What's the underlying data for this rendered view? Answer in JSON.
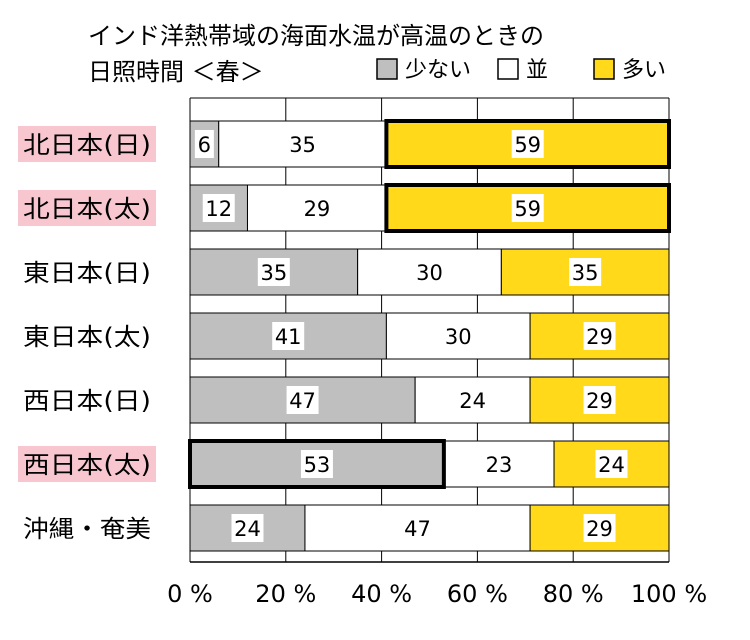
{
  "title_line1": "インド洋熱帯域の海面水温が高温のときの",
  "title_line2": "日照時間 ＜春＞",
  "colors": {
    "low": "#bfbfbf",
    "normal": "#ffffff",
    "high": "#ffd91a",
    "highlight_label_bg": "#f7c6cf"
  },
  "chart_data": {
    "type": "bar",
    "orientation": "horizontal",
    "stacked": true,
    "categories": [
      "北日本(日)",
      "北日本(太)",
      "東日本(日)",
      "東日本(太)",
      "西日本(日)",
      "西日本(太)",
      "沖縄・奄美"
    ],
    "highlighted_categories": [
      "北日本(日)",
      "北日本(太)",
      "西日本(太)"
    ],
    "series": [
      {
        "name": "少ない",
        "values": [
          6,
          12,
          35,
          41,
          47,
          53,
          24
        ]
      },
      {
        "name": "並",
        "values": [
          35,
          29,
          30,
          30,
          24,
          23,
          47
        ]
      },
      {
        "name": "多い",
        "values": [
          59,
          59,
          35,
          29,
          29,
          24,
          29
        ]
      }
    ],
    "emphasized_segments": [
      {
        "category": "北日本(日)",
        "series": "多い"
      },
      {
        "category": "北日本(太)",
        "series": "多い"
      },
      {
        "category": "西日本(太)",
        "series": "少ない"
      }
    ],
    "xlim": [
      0,
      100
    ],
    "ticks": [
      "0 %",
      "20 %",
      "40 %",
      "60 %",
      "80 %",
      "100 %"
    ],
    "grid": true,
    "legend_position": "top-right"
  }
}
